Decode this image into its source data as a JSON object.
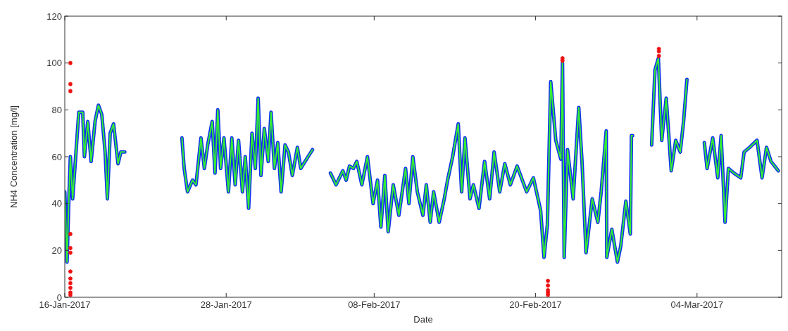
{
  "chart_data": {
    "type": "line",
    "xlabel": "Date",
    "ylabel": "NH4 Concentration [mg/l]",
    "x": [
      "2017-01-16T00:00",
      "2017-01-16T04:00",
      "2017-01-16T07:00",
      "2017-01-16T10:00",
      "2017-01-16T14:00",
      "2017-01-16T20:00",
      "2017-01-17T01:00",
      "2017-01-17T08:00",
      "2017-01-17T11:00",
      "2017-01-17T17:00",
      "2017-01-17T23:00",
      "2017-01-18T06:00",
      "2017-01-18T12:00",
      "2017-01-18T18:00",
      "2017-01-19T00:00",
      "2017-01-19T04:00",
      "2017-01-19T09:00",
      "2017-01-19T15:00",
      "2017-01-19T23:00",
      "2017-01-20T04:00",
      "2017-01-20T11:00",
      "2017-01-22T00:00",
      "2017-01-24T17:00",
      "2017-01-24T21:00",
      "2017-01-25T03:00",
      "2017-01-25T12:00",
      "2017-01-25T18:00",
      "2017-01-26T03:00",
      "2017-01-26T09:00",
      "2017-01-26T15:00",
      "2017-01-26T23:00",
      "2017-01-27T04:00",
      "2017-01-27T09:00",
      "2017-01-27T14:00",
      "2017-01-27T20:00",
      "2017-01-28T04:00",
      "2017-01-28T10:00",
      "2017-01-28T16:00",
      "2017-01-28T22:00",
      "2017-01-29T05:00",
      "2017-01-29T10:00",
      "2017-01-29T16:00",
      "2017-01-29T22:00",
      "2017-01-30T04:00",
      "2017-01-30T09:00",
      "2017-01-30T14:00",
      "2017-01-30T20:00",
      "2017-01-31T03:00",
      "2017-01-31T08:00",
      "2017-01-31T14:00",
      "2017-01-31T20:00",
      "2017-02-01T02:00",
      "2017-02-01T09:00",
      "2017-02-01T15:00",
      "2017-02-01T22:00",
      "2017-02-02T07:00",
      "2017-02-02T13:00",
      "2017-02-03T02:00",
      "2017-02-03T10:00",
      "2017-02-04T02:00",
      "2017-02-04T18:00",
      "2017-02-05T04:00",
      "2017-02-05T16:00",
      "2017-02-05T22:00",
      "2017-02-06T04:00",
      "2017-02-06T11:00",
      "2017-02-06T17:00",
      "2017-02-07T02:00",
      "2017-02-07T12:00",
      "2017-02-07T22:00",
      "2017-02-08T06:00",
      "2017-02-08T12:00",
      "2017-02-08T19:00",
      "2017-02-09T01:00",
      "2017-02-09T10:00",
      "2017-02-09T20:00",
      "2017-02-10T08:00",
      "2017-02-10T14:00",
      "2017-02-10T21:00",
      "2017-02-11T05:00",
      "2017-02-11T15:00",
      "2017-02-11T21:00",
      "2017-02-12T04:00",
      "2017-02-12T10:00",
      "2017-02-12T20:00",
      "2017-02-13T05:00",
      "2017-02-13T11:00",
      "2017-02-13T20:00",
      "2017-02-14T06:00",
      "2017-02-14T12:00",
      "2017-02-14T18:00",
      "2017-02-15T03:00",
      "2017-02-15T09:00",
      "2017-02-15T19:00",
      "2017-02-16T05:00",
      "2017-02-16T14:00",
      "2017-02-16T22:00",
      "2017-02-17T08:00",
      "2017-02-17T17:00",
      "2017-02-18T03:00",
      "2017-02-18T15:00",
      "2017-02-19T08:00",
      "2017-02-19T20:00",
      "2017-02-20T09:00",
      "2017-02-20T15:00",
      "2017-02-20T21:00",
      "2017-02-21T03:00",
      "2017-02-21T12:00",
      "2017-02-21T21:00",
      "2017-02-22T00:00",
      "2017-02-22T03:00",
      "2017-02-22T09:00",
      "2017-02-22T19:00",
      "2017-02-23T05:00",
      "2017-02-23T11:00",
      "2017-02-23T18:00",
      "2017-02-24T05:00",
      "2017-02-24T15:00",
      "2017-02-24T21:00",
      "2017-02-25T06:00",
      "2017-02-25T07:00",
      "2017-02-25T16:00",
      "2017-02-26T02:00",
      "2017-02-26T08:00",
      "2017-02-26T17:00",
      "2017-02-27T01:00",
      "2017-02-27T03:00",
      "2017-02-27T05:00",
      "2017-02-28T06:00",
      "2017-02-28T15:00",
      "2017-02-28T21:00",
      "2017-03-01T03:00",
      "2017-03-01T09:00",
      "2017-03-01T17:00",
      "2017-03-02T02:00",
      "2017-03-02T10:00",
      "2017-03-02T18:00",
      "2017-03-03T00:00",
      "2017-03-03T06:00",
      "2017-03-04T00:00",
      "2017-03-04T13:00",
      "2017-03-04T18:00",
      "2017-03-05T04:00",
      "2017-03-05T13:00",
      "2017-03-05T19:00",
      "2017-03-06T02:00",
      "2017-03-06T08:00",
      "2017-03-06T18:00",
      "2017-03-07T06:00",
      "2017-03-07T12:00",
      "2017-03-07T22:00",
      "2017-03-08T11:00",
      "2017-03-08T20:00",
      "2017-03-09T04:00",
      "2017-03-09T12:00",
      "2017-03-10T01:00"
    ],
    "series": [
      {
        "color": "#1030ee",
        "values": [
          45,
          15,
          40,
          60,
          42,
          62,
          79,
          79,
          60,
          75,
          58,
          75,
          82,
          78,
          62,
          42,
          70,
          74,
          57,
          62,
          62,
          null,
          68,
          55,
          45,
          50,
          48,
          68,
          55,
          65,
          75,
          53,
          80,
          55,
          68,
          45,
          68,
          48,
          67,
          45,
          60,
          38,
          70,
          55,
          85,
          52,
          72,
          58,
          79,
          55,
          66,
          45,
          65,
          62,
          52,
          64,
          55,
          60,
          63,
          null,
          53,
          48,
          54,
          50,
          56,
          55,
          58,
          48,
          60,
          40,
          50,
          30,
          52,
          28,
          48,
          35,
          55,
          40,
          60,
          45,
          35,
          48,
          32,
          45,
          32,
          42,
          50,
          60,
          74,
          45,
          68,
          42,
          48,
          38,
          58,
          42,
          62,
          45,
          57,
          48,
          56,
          45,
          51,
          37,
          17,
          31,
          92,
          67,
          59,
          100,
          17,
          63,
          42,
          81,
          57,
          19,
          42,
          32,
          45,
          71,
          17,
          29,
          15,
          22,
          41,
          27,
          69,
          69,
          null,
          65,
          97,
          102,
          67,
          85,
          54,
          67,
          62,
          75,
          93,
          null,
          66,
          55,
          68,
          51,
          69,
          32,
          55,
          53,
          51,
          62,
          64,
          67,
          51,
          64,
          58,
          54
        ]
      },
      {
        "color": "#33ee33",
        "values": [
          45,
          15,
          40,
          60,
          42,
          62,
          79,
          79,
          60,
          75,
          58,
          75,
          82,
          78,
          62,
          42,
          70,
          74,
          57,
          62,
          62,
          null,
          68,
          55,
          45,
          50,
          48,
          68,
          55,
          65,
          75,
          53,
          80,
          55,
          68,
          45,
          68,
          48,
          67,
          45,
          60,
          38,
          70,
          55,
          85,
          52,
          72,
          58,
          79,
          55,
          66,
          45,
          65,
          62,
          52,
          64,
          55,
          60,
          63,
          null,
          53,
          48,
          54,
          50,
          56,
          55,
          58,
          48,
          60,
          40,
          50,
          30,
          52,
          28,
          48,
          35,
          55,
          40,
          60,
          45,
          35,
          48,
          32,
          45,
          32,
          42,
          50,
          60,
          74,
          45,
          68,
          42,
          48,
          38,
          58,
          42,
          62,
          45,
          57,
          48,
          56,
          45,
          51,
          37,
          17,
          31,
          92,
          67,
          59,
          100,
          17,
          63,
          42,
          81,
          57,
          19,
          42,
          32,
          45,
          71,
          17,
          29,
          15,
          22,
          41,
          27,
          69,
          69,
          null,
          65,
          97,
          102,
          67,
          85,
          54,
          67,
          62,
          75,
          93,
          null,
          66,
          55,
          68,
          51,
          69,
          32,
          55,
          53,
          51,
          62,
          64,
          67,
          51,
          64,
          58,
          54
        ]
      },
      {
        "type": "scatter",
        "marker": "cross",
        "color": "#ee1111",
        "x": [
          "2017-01-16T10:00",
          "2017-01-16T10:00",
          "2017-01-16T10:00",
          "2017-01-16T10:00",
          "2017-01-16T10:00",
          "2017-01-16T10:00",
          "2017-01-16T10:00",
          "2017-01-16T10:00",
          "2017-01-16T10:00",
          "2017-01-16T10:00",
          "2017-01-16T10:00",
          "2017-01-16T10:00",
          "2017-02-20T22:00",
          "2017-02-20T22:00",
          "2017-02-20T22:00",
          "2017-02-20T22:00",
          "2017-02-20T22:00",
          "2017-02-22T00:00",
          "2017-02-22T00:00",
          "2017-03-01T04:00",
          "2017-03-01T04:00",
          "2017-03-01T04:00"
        ],
        "values": [
          100,
          91,
          88,
          27,
          21,
          19,
          11,
          8,
          6,
          4,
          2,
          1,
          7,
          5,
          3,
          2,
          1,
          102,
          101,
          106,
          105,
          103
        ]
      }
    ],
    "xlim": [
      "2017-01-16",
      "2017-03-10T07:00"
    ],
    "xticks": [
      {
        "value": "2017-01-16",
        "label": "16-Jan-2017"
      },
      {
        "value": "2017-01-28",
        "label": "28-Jan-2017"
      },
      {
        "value": "2017-02-08",
        "label": "08-Feb-2017"
      },
      {
        "value": "2017-02-20",
        "label": "20-Feb-2017"
      },
      {
        "value": "2017-03-04",
        "label": "04-Mar-2017"
      }
    ],
    "ylim": [
      0,
      120
    ],
    "yticks": [
      0,
      20,
      40,
      60,
      80,
      100,
      120
    ]
  }
}
